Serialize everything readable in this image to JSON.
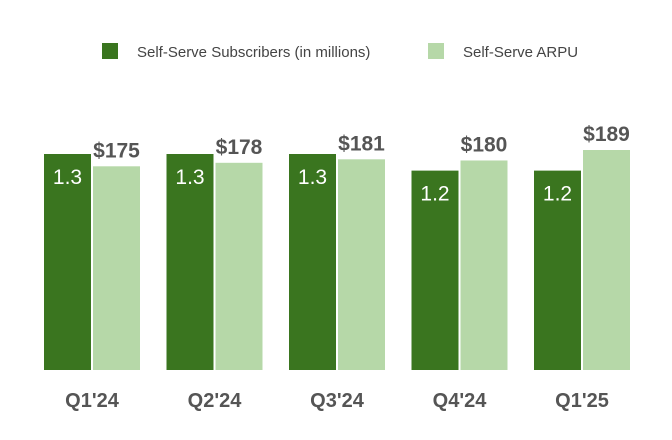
{
  "colors": {
    "subscribers": "#3a751f",
    "arpu": "#b6d8a8",
    "label_dark": "#555555",
    "label_light": "#ffffff"
  },
  "chart_data": {
    "type": "bar",
    "categories": [
      "Q1'24",
      "Q2'24",
      "Q3'24",
      "Q4'24",
      "Q1'25"
    ],
    "series": [
      {
        "name": "Self-Serve Subscribers (in millions)",
        "values": [
          1.3,
          1.3,
          1.3,
          1.2,
          1.2
        ],
        "labels": [
          "1.3",
          "1.3",
          "1.3",
          "1.2",
          "1.2"
        ]
      },
      {
        "name": "Self-Serve ARPU",
        "values": [
          175,
          178,
          181,
          180,
          189
        ],
        "labels": [
          "$175",
          "$178",
          "$181",
          "$180",
          "$189"
        ]
      }
    ],
    "legend_position": "top",
    "grid": false,
    "yaxis_visible": false
  }
}
